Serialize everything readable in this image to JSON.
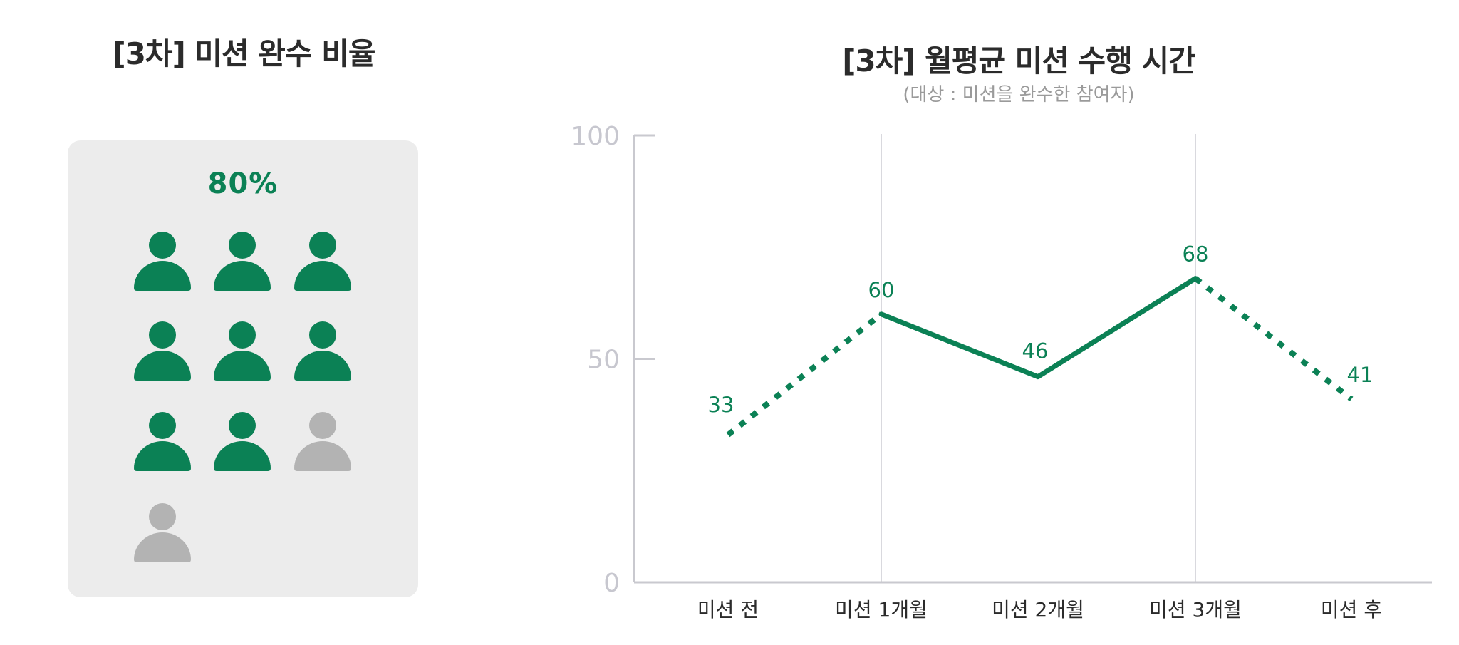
{
  "colors": {
    "accent": "#0b8155",
    "inactive": "#b3b3b3",
    "card": "#ececec",
    "axis": "#c9c9cf"
  },
  "left_panel": {
    "title": "[3차] 미션 완수 비율",
    "percent_label": "80%",
    "completion_ratio": 0.8,
    "people_total": 10,
    "people_completed": 8,
    "person_icon": "person-icon"
  },
  "chart_data": {
    "type": "line",
    "title": "[3차] 월평균 미션 수행 시간",
    "subtitle": "(대상 : 미션을 완수한 참여자)",
    "categories": [
      "미션 전",
      "미션 1개월",
      "미션 2개월",
      "미션 3개월",
      "미션 후"
    ],
    "values": [
      33,
      60,
      46,
      68,
      41
    ],
    "segment_styles": [
      "dotted",
      "solid",
      "solid",
      "dotted"
    ],
    "yticks": [
      0,
      50,
      100
    ],
    "ylim": [
      0,
      100
    ],
    "vertical_gridlines_at": [
      "미션 1개월",
      "미션 3개월"
    ],
    "data_labels": true
  }
}
